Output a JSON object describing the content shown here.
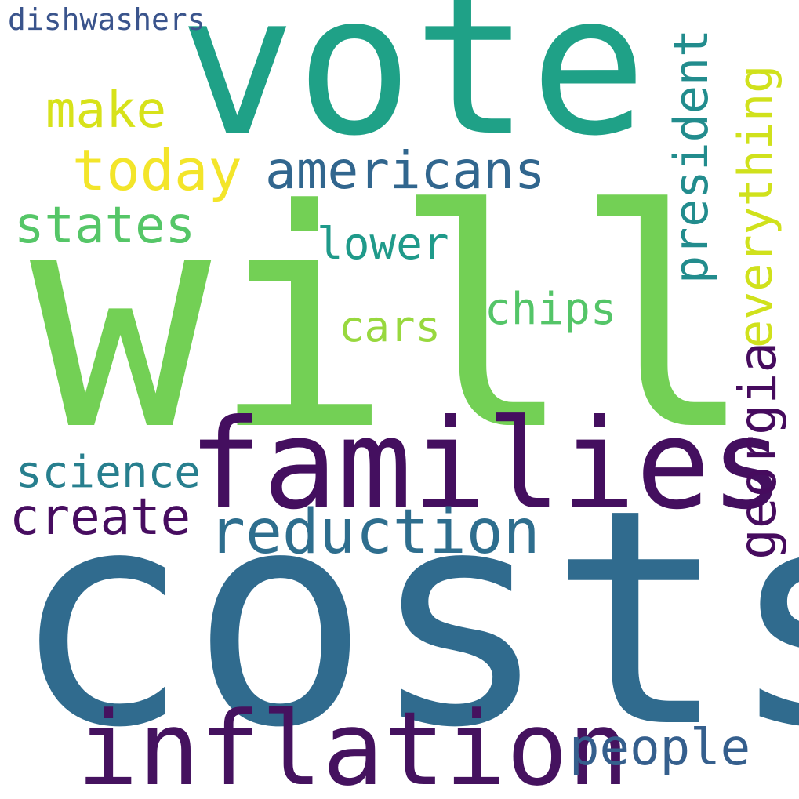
{
  "words": [
    {
      "text": "will",
      "color": "#73d055"
    },
    {
      "text": "costs",
      "color": "#306b8e"
    },
    {
      "text": "vote",
      "color": "#1fa187"
    },
    {
      "text": "families",
      "color": "#440f5f"
    },
    {
      "text": "inflation",
      "color": "#45125f"
    },
    {
      "text": "reduction",
      "color": "#2e6e8e"
    },
    {
      "text": "americans",
      "color": "#31668e"
    },
    {
      "text": "today",
      "color": "#f3e52a"
    },
    {
      "text": "make",
      "color": "#d7e21a"
    },
    {
      "text": "states",
      "color": "#55c667"
    },
    {
      "text": "science",
      "color": "#277f8e"
    },
    {
      "text": "create",
      "color": "#470d60"
    },
    {
      "text": "people",
      "color": "#355f8d"
    },
    {
      "text": "lower",
      "color": "#1f9a8a"
    },
    {
      "text": "chips",
      "color": "#54c568"
    },
    {
      "text": "cars",
      "color": "#98d83e"
    },
    {
      "text": "dishwashers",
      "color": "#3a548c"
    },
    {
      "text": "president",
      "color": "#228c8d"
    },
    {
      "text": "everything",
      "color": "#d0e11c"
    },
    {
      "text": "georgia",
      "color": "#460b5e"
    }
  ]
}
